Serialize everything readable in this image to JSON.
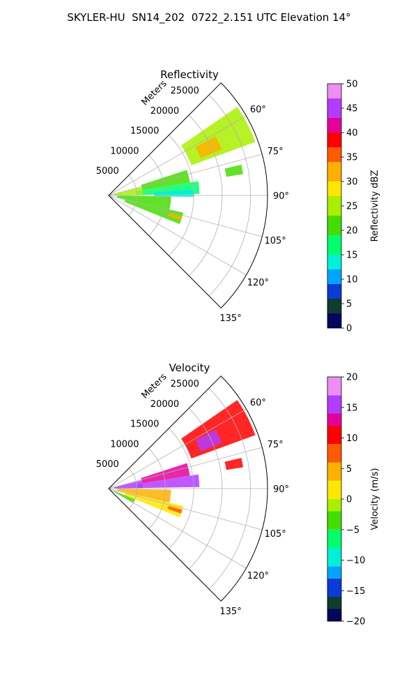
{
  "figure": {
    "title": "SKYLER-HU  SN14_202  0722_2.151 UTC Elevation 14°"
  },
  "chart_data": [
    {
      "type": "heatmap",
      "kind": "ppi-sector",
      "title": "Reflectivity",
      "range_label": "Meters",
      "radial_ticks": [
        5000,
        10000,
        15000,
        20000,
        25000
      ],
      "radial_tick_labels": [
        "5000",
        "10000",
        "15000",
        "20000",
        "25000"
      ],
      "range_max": 28000,
      "azimuth_range_deg": [
        45,
        135
      ],
      "azimuth_ticks": [
        60,
        75,
        90,
        105,
        120,
        135
      ],
      "azimuth_tick_labels": [
        "60°",
        "75°",
        "90°",
        "105°",
        "120°",
        "135°"
      ],
      "grid": true,
      "colorbar": {
        "label": "Reflectivity dBZ",
        "min": 0,
        "max": 50,
        "ticks": [
          0,
          5,
          10,
          15,
          20,
          25,
          30,
          35,
          40,
          45,
          50
        ],
        "tick_labels": [
          "0",
          "5",
          "10",
          "15",
          "20",
          "25",
          "30",
          "35",
          "40",
          "45",
          "50"
        ],
        "stops": [
          [
            0,
            "#06065e"
          ],
          [
            3,
            "#0d3d2f"
          ],
          [
            6,
            "#0a3bd6"
          ],
          [
            9,
            "#00a5ff"
          ],
          [
            12,
            "#00f0d8"
          ],
          [
            15,
            "#00ff6a"
          ],
          [
            19,
            "#44dd00"
          ],
          [
            23,
            "#a8f000"
          ],
          [
            27,
            "#ffe800"
          ],
          [
            30,
            "#ffb000"
          ],
          [
            34,
            "#ff5a00"
          ],
          [
            37,
            "#ff0000"
          ],
          [
            40,
            "#e6009a"
          ],
          [
            43,
            "#b43cff"
          ],
          [
            47,
            "#ee8ef2"
          ],
          [
            50,
            "#fbeafb"
          ]
        ]
      },
      "echo_regions": [
        {
          "az": [
            55.5,
            70
          ],
          "r": [
            15500,
            27500
          ],
          "value": 23
        },
        {
          "az": [
            61,
            68
          ],
          "r": [
            17500,
            21500
          ],
          "value": 30
        },
        {
          "az": [
            77,
            81
          ],
          "r": [
            21000,
            24000
          ],
          "value": 20
        },
        {
          "az": [
            72,
            81
          ],
          "r": [
            6000,
            14500
          ],
          "value": 20
        },
        {
          "az": [
            81,
            89
          ],
          "r": [
            5000,
            16000
          ],
          "value": 16
        },
        {
          "az": [
            76,
            89
          ],
          "r": [
            1000,
            6000
          ],
          "value": 24
        },
        {
          "az": [
            91,
            103
          ],
          "r": [
            1500,
            11000
          ],
          "value": 19
        },
        {
          "az": [
            103,
            112
          ],
          "r": [
            3000,
            13500
          ],
          "value": 20
        },
        {
          "az": [
            106,
            109
          ],
          "r": [
            11000,
            13500
          ],
          "value": 33
        },
        {
          "az": [
            86,
            91
          ],
          "r": [
            8000,
            15000
          ],
          "value": 13
        }
      ]
    },
    {
      "type": "heatmap",
      "kind": "ppi-sector",
      "title": "Velocity",
      "range_label": "Meters",
      "radial_ticks": [
        5000,
        10000,
        15000,
        20000,
        25000
      ],
      "radial_tick_labels": [
        "5000",
        "10000",
        "15000",
        "20000",
        "25000"
      ],
      "range_max": 28000,
      "azimuth_range_deg": [
        45,
        135
      ],
      "azimuth_ticks": [
        60,
        75,
        90,
        105,
        120,
        135
      ],
      "azimuth_tick_labels": [
        "60°",
        "75°",
        "90°",
        "105°",
        "120°",
        "135°"
      ],
      "grid": true,
      "colorbar": {
        "label": "Velocity (m/s)",
        "min": -20,
        "max": 20,
        "ticks": [
          -20,
          -15,
          -10,
          -5,
          0,
          5,
          10,
          15,
          20
        ],
        "tick_labels": [
          "−20",
          "−15",
          "−10",
          "−5",
          "0",
          "5",
          "10",
          "15",
          "20"
        ],
        "stops": [
          [
            -20,
            "#06065e"
          ],
          [
            -18,
            "#0d3d2f"
          ],
          [
            -16,
            "#0a3bd6"
          ],
          [
            -13,
            "#00a5ff"
          ],
          [
            -11,
            "#00f0d8"
          ],
          [
            -8,
            "#00ff6a"
          ],
          [
            -5,
            "#44dd00"
          ],
          [
            -2,
            "#a8f000"
          ],
          [
            0,
            "#ffe800"
          ],
          [
            3,
            "#ffb000"
          ],
          [
            6,
            "#ff5a00"
          ],
          [
            9,
            "#ff0000"
          ],
          [
            12,
            "#e6009a"
          ],
          [
            14,
            "#b43cff"
          ],
          [
            17,
            "#ee8ef2"
          ],
          [
            20,
            "#fbeafb"
          ]
        ]
      },
      "echo_regions": [
        {
          "az": [
            55.5,
            70
          ],
          "r": [
            15500,
            27500
          ],
          "value": 11
        },
        {
          "az": [
            61,
            68
          ],
          "r": [
            17500,
            21500
          ],
          "value": 15
        },
        {
          "az": [
            77,
            81
          ],
          "r": [
            21000,
            24000
          ],
          "value": 10
        },
        {
          "az": [
            72,
            81
          ],
          "r": [
            6000,
            14500
          ],
          "value": 13
        },
        {
          "az": [
            81,
            89
          ],
          "r": [
            5000,
            16000
          ],
          "value": 14
        },
        {
          "az": [
            76,
            89
          ],
          "r": [
            1000,
            6000
          ],
          "value": 14
        },
        {
          "az": [
            91,
            103
          ],
          "r": [
            1500,
            11000
          ],
          "value": 4
        },
        {
          "az": [
            103,
            112
          ],
          "r": [
            3000,
            13500
          ],
          "value": 1
        },
        {
          "az": [
            106,
            109
          ],
          "r": [
            11000,
            13500
          ],
          "value": 7
        },
        {
          "az": [
            112,
            120
          ],
          "r": [
            1000,
            5000
          ],
          "value": -4
        }
      ]
    }
  ]
}
